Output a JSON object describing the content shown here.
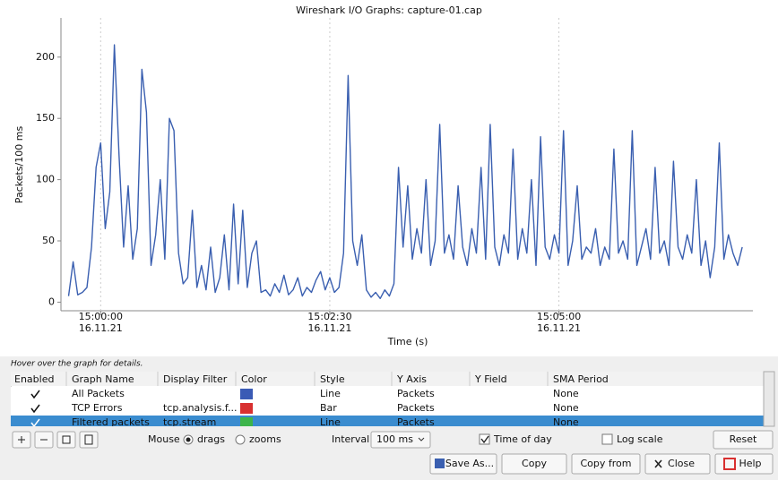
{
  "chart_data": {
    "type": "line",
    "title": "Wireshark I/O Graphs: capture-01.cap",
    "y_label": "Packets/100 ms",
    "x_label": "Time (s)",
    "xlim": [
      -26,
      427
    ],
    "ylim": [
      -7,
      232
    ],
    "xticks": [
      {
        "value": 0,
        "label": "15:00:00"
      },
      {
        "value": 150,
        "label": "15:02:30"
      },
      {
        "value": 300,
        "label": "15:05:00"
      }
    ],
    "x_tick_dates": [
      "16.11.21",
      "16.11.21",
      "16.11.21"
    ],
    "yticks": [
      0,
      50,
      100,
      150,
      200
    ],
    "grid": true,
    "series": [
      {
        "name": "All Packets",
        "color": "#3a5fb0",
        "x": [
          -21,
          -18,
          -15,
          -12,
          -9,
          -6,
          -3,
          0,
          3,
          6,
          9,
          12,
          15,
          18,
          21,
          24,
          27,
          30,
          33,
          36,
          39,
          42,
          45,
          48,
          51,
          54,
          57,
          60,
          63,
          66,
          69,
          72,
          75,
          78,
          81,
          84,
          87,
          90,
          93,
          96,
          99,
          102,
          105,
          108,
          111,
          114,
          117,
          120,
          123,
          126,
          129,
          132,
          135,
          138,
          141,
          144,
          147,
          150,
          153,
          156,
          159,
          162,
          165,
          168,
          171,
          174,
          177,
          180,
          183,
          186,
          189,
          192,
          195,
          198,
          201,
          204,
          207,
          210,
          213,
          216,
          219,
          222,
          225,
          228,
          231,
          234,
          237,
          240,
          243,
          246,
          249,
          252,
          255,
          258,
          261,
          264,
          267,
          270,
          273,
          276,
          279,
          282,
          285,
          288,
          291,
          294,
          297,
          300,
          303,
          306,
          309,
          312,
          315,
          318,
          321,
          324,
          327,
          330,
          333,
          336,
          339,
          342,
          345,
          348,
          351,
          354,
          357,
          360,
          363,
          366,
          369,
          372,
          375,
          378,
          381,
          384,
          387,
          390,
          393,
          396,
          399,
          402,
          405,
          408,
          411,
          414,
          417,
          420
        ],
        "values": [
          5,
          33,
          6,
          8,
          12,
          45,
          110,
          130,
          60,
          90,
          210,
          120,
          45,
          95,
          35,
          60,
          190,
          155,
          30,
          55,
          100,
          35,
          150,
          140,
          40,
          15,
          20,
          75,
          12,
          30,
          10,
          45,
          8,
          20,
          55,
          10,
          80,
          15,
          75,
          12,
          40,
          50,
          8,
          10,
          5,
          15,
          8,
          22,
          6,
          10,
          20,
          5,
          12,
          8,
          18,
          25,
          10,
          20,
          8,
          12,
          40,
          185,
          50,
          30,
          55,
          10,
          4,
          8,
          3,
          10,
          5,
          15,
          110,
          45,
          95,
          35,
          60,
          40,
          100,
          30,
          50,
          145,
          40,
          55,
          35,
          95,
          45,
          30,
          60,
          40,
          110,
          35,
          145,
          45,
          30,
          55,
          40,
          125,
          35,
          60,
          40,
          100,
          30,
          135,
          45,
          35,
          55,
          40,
          140,
          30,
          50,
          95,
          35,
          45,
          40,
          60,
          30,
          45,
          35,
          125,
          40,
          50,
          35,
          140,
          30,
          45,
          60,
          35,
          110,
          40,
          50,
          30,
          115,
          45,
          35,
          55,
          40,
          100,
          30,
          50,
          20,
          45,
          130,
          35,
          55,
          40,
          30,
          45
        ]
      }
    ]
  },
  "ui": {
    "hover_hint": "Hover over the graph for details.",
    "columns": [
      "Enabled",
      "Graph Name",
      "Display Filter",
      "Color",
      "Style",
      "Y Axis",
      "Y Field",
      "SMA Period"
    ],
    "rows": [
      {
        "name": "All Packets",
        "color": "#3a5bb5",
        "style": "Line",
        "y_axis": "Packets",
        "sma_period": "None"
      },
      {
        "name": "TCP Errors",
        "filter": "tcp.analysis.f...",
        "color": "#d83030",
        "style": "Bar",
        "y_axis": "Packets",
        "sma_period": "None"
      },
      {
        "name": "Filtered packets",
        "filter": "tcp.stream",
        "color": "#3cb44a",
        "style": "Line",
        "y_axis": "Packets",
        "sma_period": "None"
      }
    ],
    "mouse_label": "Mouse",
    "drags": "drags",
    "zooms": "zooms",
    "interval_label": "Interval",
    "interval": "100 ms",
    "time_of_day": "Time of day",
    "log_scale": "Log scale",
    "reset": "Reset",
    "save_as": "Save As...",
    "copy": "Copy",
    "copy_from": "Copy from",
    "close": "Close",
    "help": "Help"
  }
}
